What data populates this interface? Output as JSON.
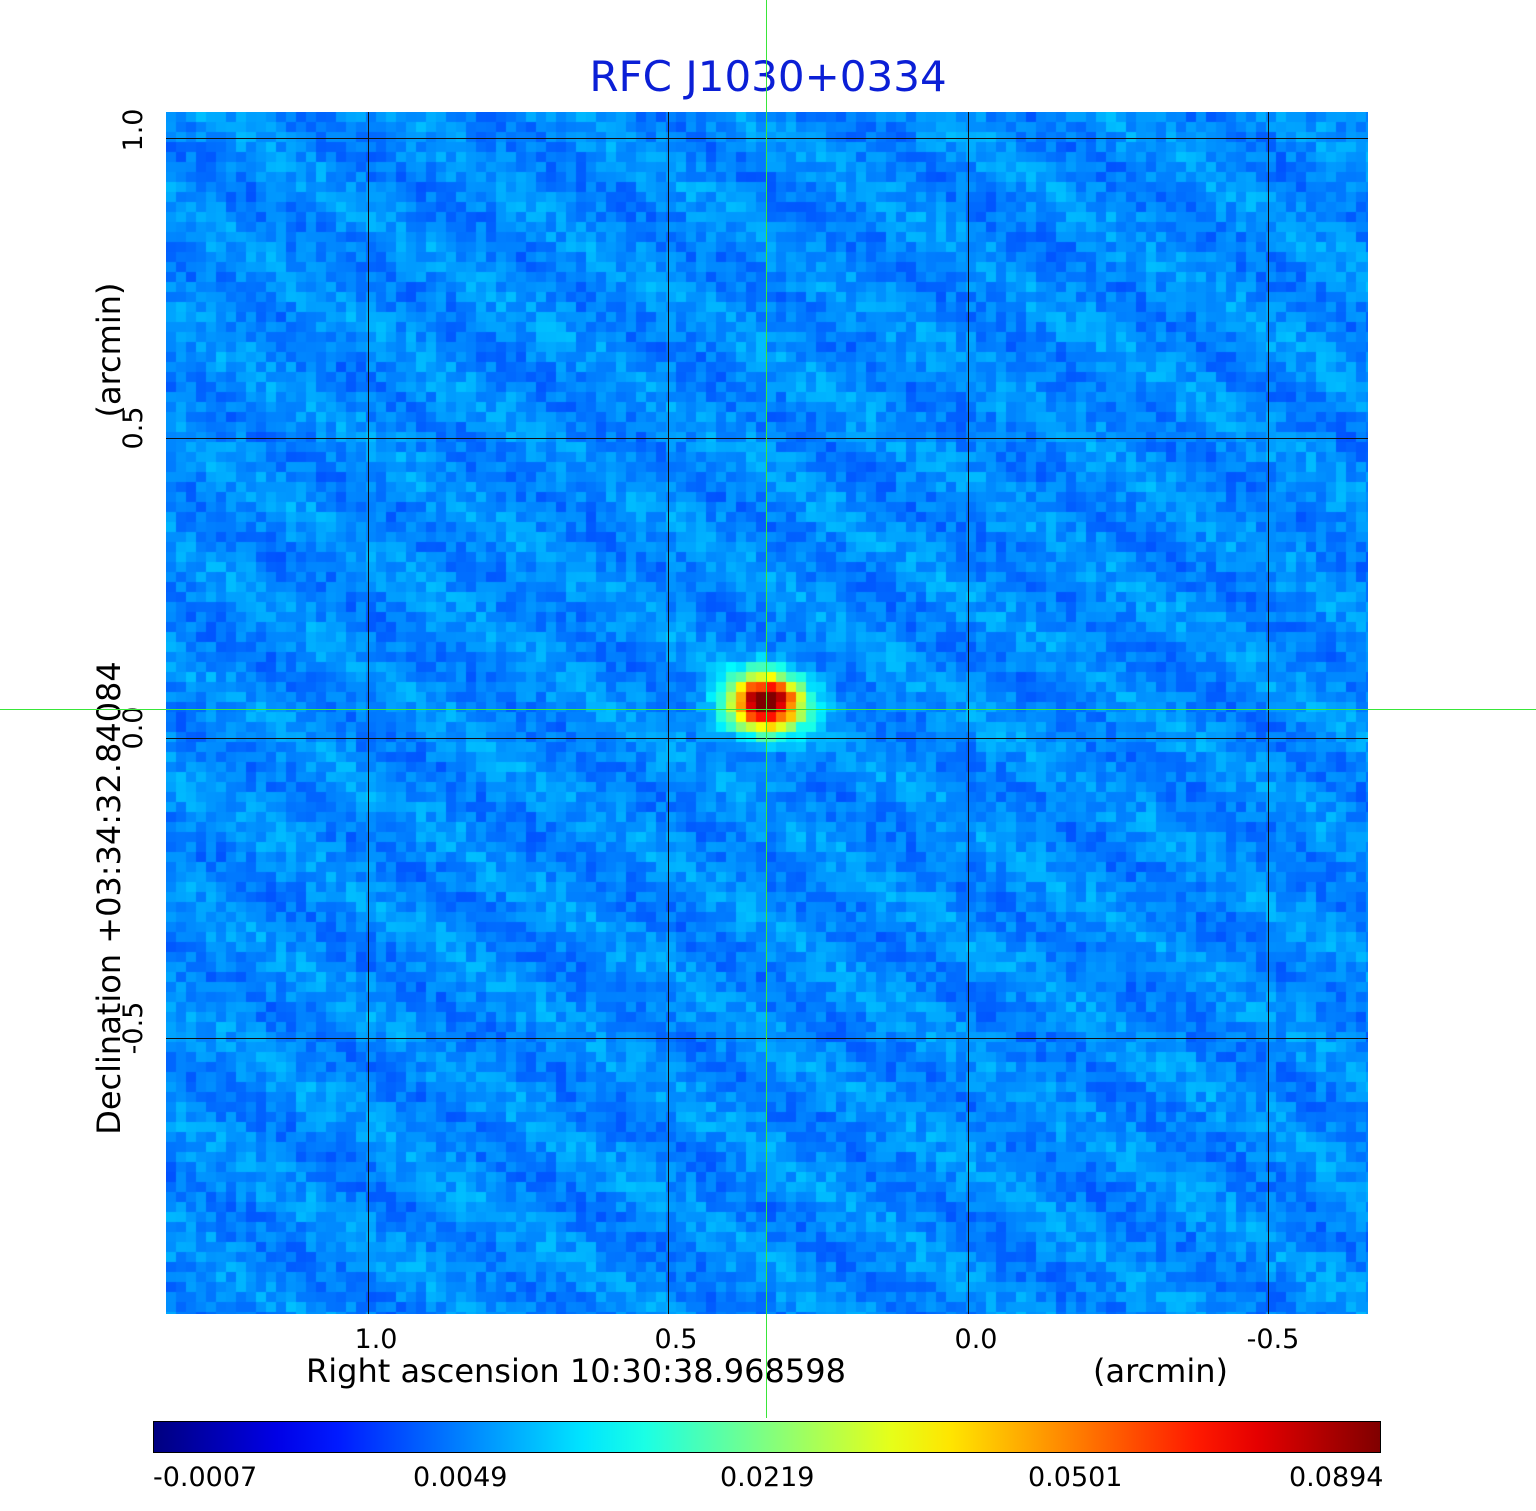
{
  "title": "RFC J1030+0334",
  "x_axis": {
    "label": "Right ascension  10:30:38.968598",
    "unit": "(arcmin)",
    "ticks": [
      "1.0",
      "0.5",
      "0.0",
      "-0.5"
    ]
  },
  "y_axis": {
    "label": "Declination  +03:34:32.84084",
    "unit": "(arcmin)",
    "ticks": [
      "1.0",
      "0.5",
      "0.0",
      "-0.5"
    ]
  },
  "colorbar": {
    "colormap": "jet",
    "ticks": [
      "-0.0007",
      "0.0049",
      "0.0219",
      "0.0501",
      "0.0894"
    ]
  },
  "image": {
    "content": "radio intensity map with a single compact bright source at the crosshair",
    "crosshair_color": "#39e639",
    "grid_color": "#111111"
  }
}
